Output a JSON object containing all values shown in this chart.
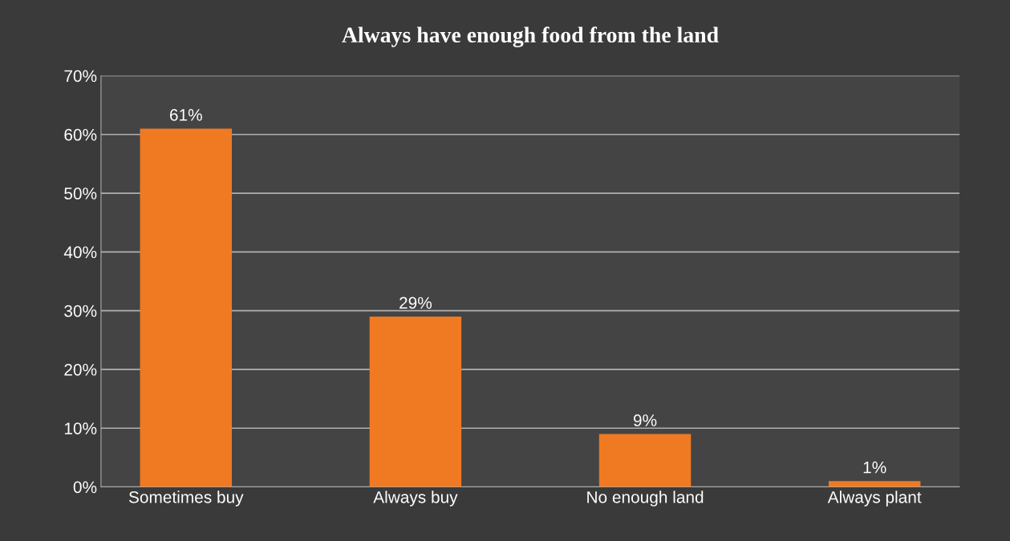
{
  "chart_data": {
    "type": "bar",
    "title": "Always have enough food from the land",
    "categories": [
      "Sometimes buy",
      "Always buy",
      "No enough land",
      "Always plant"
    ],
    "values": [
      61,
      29,
      9,
      1
    ],
    "value_labels": [
      "61%",
      "29%",
      "9%",
      "1%"
    ],
    "color": "#f07a22",
    "ylim": [
      0,
      70
    ],
    "yticks": [
      {
        "value": 0,
        "label": "0%"
      },
      {
        "value": 10,
        "label": "10%"
      },
      {
        "value": 20,
        "label": "20%"
      },
      {
        "value": 30,
        "label": "30%"
      },
      {
        "value": 40,
        "label": "40%"
      },
      {
        "value": 50,
        "label": "50%"
      },
      {
        "value": 60,
        "label": "60%"
      },
      {
        "value": 70,
        "label": "70%"
      }
    ],
    "grid": "y"
  }
}
